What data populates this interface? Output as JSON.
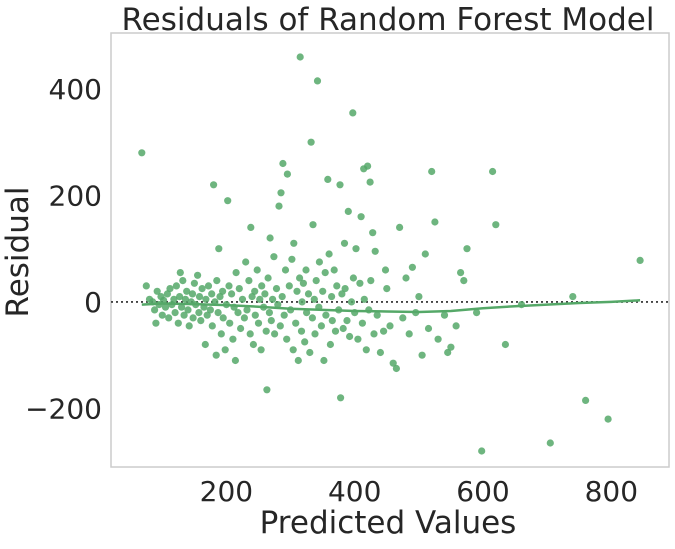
{
  "chart_data": {
    "type": "scatter",
    "title": "Residuals of Random Forest Model",
    "xlabel": "Predicted Values",
    "ylabel": "Residual",
    "xlim": [
      20,
      890
    ],
    "ylim": [
      -310,
      505
    ],
    "xticks": [
      200,
      400,
      600,
      800
    ],
    "yticks": [
      -200,
      0,
      200,
      400
    ],
    "xtick_labels": [
      "200",
      "400",
      "600",
      "800"
    ],
    "ytick_labels": [
      "−200",
      "0",
      "200",
      "400"
    ],
    "grid": false,
    "reference_line": {
      "y": 0,
      "style": "dotted"
    },
    "colors": {
      "points": "#55a868",
      "smooth": "#55a868",
      "reference": "#444444",
      "axes": "#cccccc"
    },
    "points": [
      [
        68,
        280
      ],
      [
        75,
        30
      ],
      [
        80,
        5
      ],
      [
        85,
        0
      ],
      [
        88,
        -15
      ],
      [
        90,
        -40
      ],
      [
        92,
        20
      ],
      [
        95,
        -5
      ],
      [
        98,
        10
      ],
      [
        100,
        -25
      ],
      [
        102,
        3
      ],
      [
        105,
        -10
      ],
      [
        108,
        15
      ],
      [
        110,
        -30
      ],
      [
        112,
        25
      ],
      [
        115,
        -5
      ],
      [
        118,
        5
      ],
      [
        120,
        -20
      ],
      [
        122,
        30
      ],
      [
        125,
        -40
      ],
      [
        127,
        10
      ],
      [
        128,
        55
      ],
      [
        130,
        -10
      ],
      [
        132,
        40
      ],
      [
        134,
        -25
      ],
      [
        136,
        5
      ],
      [
        138,
        20
      ],
      [
        140,
        -15
      ],
      [
        142,
        -45
      ],
      [
        145,
        0
      ],
      [
        147,
        15
      ],
      [
        148,
        -30
      ],
      [
        150,
        35
      ],
      [
        152,
        -5
      ],
      [
        155,
        50
      ],
      [
        157,
        -20
      ],
      [
        158,
        10
      ],
      [
        160,
        -35
      ],
      [
        162,
        25
      ],
      [
        165,
        -10
      ],
      [
        167,
        -80
      ],
      [
        168,
        5
      ],
      [
        170,
        -25
      ],
      [
        172,
        30
      ],
      [
        175,
        -15
      ],
      [
        177,
        15
      ],
      [
        178,
        -45
      ],
      [
        180,
        220
      ],
      [
        182,
        0
      ],
      [
        184,
        -100
      ],
      [
        185,
        40
      ],
      [
        187,
        -20
      ],
      [
        188,
        100
      ],
      [
        190,
        10
      ],
      [
        192,
        -60
      ],
      [
        194,
        20
      ],
      [
        195,
        -30
      ],
      [
        198,
        -90
      ],
      [
        200,
        -5
      ],
      [
        202,
        190
      ],
      [
        204,
        30
      ],
      [
        205,
        -40
      ],
      [
        208,
        15
      ],
      [
        210,
        -70
      ],
      [
        212,
        -10
      ],
      [
        214,
        -110
      ],
      [
        215,
        55
      ],
      [
        218,
        -20
      ],
      [
        220,
        25
      ],
      [
        222,
        -50
      ],
      [
        225,
        5
      ],
      [
        228,
        -30
      ],
      [
        230,
        75
      ],
      [
        232,
        -15
      ],
      [
        235,
        40
      ],
      [
        237,
        -60
      ],
      [
        238,
        140
      ],
      [
        240,
        10
      ],
      [
        242,
        -80
      ],
      [
        244,
        20
      ],
      [
        245,
        -25
      ],
      [
        248,
        60
      ],
      [
        250,
        -40
      ],
      [
        252,
        5
      ],
      [
        254,
        -90
      ],
      [
        255,
        30
      ],
      [
        258,
        -10
      ],
      [
        260,
        15
      ],
      [
        262,
        -55
      ],
      [
        263,
        -165
      ],
      [
        265,
        45
      ],
      [
        267,
        -20
      ],
      [
        268,
        120
      ],
      [
        270,
        -35
      ],
      [
        272,
        5
      ],
      [
        274,
        85
      ],
      [
        275,
        -60
      ],
      [
        278,
        25
      ],
      [
        280,
        -5
      ],
      [
        282,
        180
      ],
      [
        284,
        -45
      ],
      [
        285,
        205
      ],
      [
        287,
        10
      ],
      [
        288,
        260
      ],
      [
        290,
        -25
      ],
      [
        292,
        60
      ],
      [
        294,
        -70
      ],
      [
        295,
        240
      ],
      [
        298,
        30
      ],
      [
        300,
        -15
      ],
      [
        302,
        80
      ],
      [
        304,
        -90
      ],
      [
        305,
        110
      ],
      [
        308,
        -40
      ],
      [
        310,
        20
      ],
      [
        312,
        -110
      ],
      [
        314,
        45
      ],
      [
        315,
        460
      ],
      [
        317,
        -55
      ],
      [
        318,
        0
      ],
      [
        320,
        35
      ],
      [
        322,
        -75
      ],
      [
        324,
        60
      ],
      [
        325,
        -20
      ],
      [
        328,
        15
      ],
      [
        330,
        -95
      ],
      [
        332,
        300
      ],
      [
        334,
        -30
      ],
      [
        335,
        145
      ],
      [
        337,
        5
      ],
      [
        338,
        -60
      ],
      [
        340,
        40
      ],
      [
        342,
        415
      ],
      [
        344,
        -10
      ],
      [
        345,
        75
      ],
      [
        348,
        -45
      ],
      [
        350,
        20
      ],
      [
        352,
        -110
      ],
      [
        354,
        55
      ],
      [
        355,
        -25
      ],
      [
        358,
        230
      ],
      [
        360,
        90
      ],
      [
        362,
        -80
      ],
      [
        364,
        10
      ],
      [
        365,
        -35
      ],
      [
        368,
        60
      ],
      [
        370,
        -55
      ],
      [
        372,
        30
      ],
      [
        375,
        -15
      ],
      [
        377,
        220
      ],
      [
        378,
        -180
      ],
      [
        380,
        15
      ],
      [
        382,
        -50
      ],
      [
        384,
        110
      ],
      [
        385,
        25
      ],
      [
        388,
        -35
      ],
      [
        390,
        170
      ],
      [
        392,
        -65
      ],
      [
        395,
        0
      ],
      [
        397,
        355
      ],
      [
        398,
        45
      ],
      [
        400,
        -20
      ],
      [
        402,
        100
      ],
      [
        405,
        -70
      ],
      [
        408,
        35
      ],
      [
        410,
        160
      ],
      [
        412,
        -40
      ],
      [
        414,
        250
      ],
      [
        415,
        5
      ],
      [
        418,
        -90
      ],
      [
        420,
        255
      ],
      [
        422,
        -15
      ],
      [
        424,
        225
      ],
      [
        425,
        40
      ],
      [
        428,
        130
      ],
      [
        430,
        -60
      ],
      [
        432,
        95
      ],
      [
        435,
        -25
      ],
      [
        440,
        -95
      ],
      [
        445,
        -55
      ],
      [
        448,
        60
      ],
      [
        450,
        25
      ],
      [
        455,
        -45
      ],
      [
        460,
        -115
      ],
      [
        465,
        -125
      ],
      [
        470,
        140
      ],
      [
        475,
        -30
      ],
      [
        480,
        45
      ],
      [
        485,
        -60
      ],
      [
        490,
        65
      ],
      [
        495,
        -20
      ],
      [
        500,
        10
      ],
      [
        505,
        -100
      ],
      [
        510,
        90
      ],
      [
        515,
        -50
      ],
      [
        520,
        245
      ],
      [
        525,
        150
      ],
      [
        530,
        -70
      ],
      [
        540,
        -25
      ],
      [
        545,
        -95
      ],
      [
        550,
        -85
      ],
      [
        558,
        -45
      ],
      [
        565,
        55
      ],
      [
        570,
        40
      ],
      [
        575,
        100
      ],
      [
        590,
        -20
      ],
      [
        598,
        -280
      ],
      [
        615,
        245
      ],
      [
        620,
        145
      ],
      [
        635,
        -80
      ],
      [
        660,
        -5
      ],
      [
        705,
        -265
      ],
      [
        740,
        10
      ],
      [
        760,
        -185
      ],
      [
        795,
        -220
      ],
      [
        845,
        78
      ]
    ],
    "smooth_curve": [
      [
        68,
        -5
      ],
      [
        100,
        -3
      ],
      [
        150,
        -4
      ],
      [
        200,
        -6
      ],
      [
        250,
        -9
      ],
      [
        300,
        -13
      ],
      [
        350,
        -15
      ],
      [
        400,
        -17
      ],
      [
        450,
        -18
      ],
      [
        500,
        -19
      ],
      [
        550,
        -17
      ],
      [
        600,
        -12
      ],
      [
        650,
        -8
      ],
      [
        700,
        -5
      ],
      [
        750,
        -2
      ],
      [
        800,
        0
      ],
      [
        845,
        3
      ]
    ]
  }
}
